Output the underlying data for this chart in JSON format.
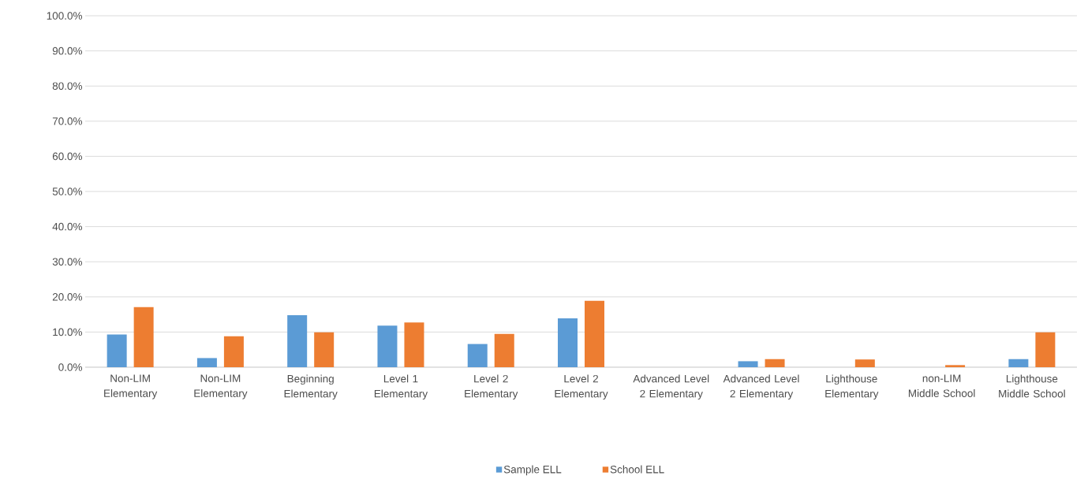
{
  "chart_data": {
    "type": "bar",
    "categories": [
      "Non-LIM Elementary",
      "Non-LIM Elementary",
      "Beginning Elementary",
      "Level 1 Elementary",
      "Level  2 Elementary",
      "Level 2 Elementary",
      "Advanced Level 2 Elementary",
      "Advanced Level 2 Elementary",
      "Lighthouse Elementary",
      "non-LIM Middle School",
      "Lighthouse Middle School"
    ],
    "series": [
      {
        "name": "Sample ELL",
        "color": "#5b9bd5",
        "values": [
          9.3,
          2.6,
          14.8,
          11.8,
          6.6,
          13.9,
          0,
          1.7,
          0,
          0,
          2.3
        ]
      },
      {
        "name": "School ELL",
        "color": "#ed7d31",
        "values": [
          17.1,
          8.8,
          9.9,
          12.7,
          9.5,
          18.9,
          0,
          2.3,
          2.2,
          0.6,
          9.9
        ]
      }
    ],
    "ylim": [
      0,
      100
    ],
    "yticks": [
      {
        "value": 0,
        "label": "0.0%"
      },
      {
        "value": 10,
        "label": "10.0%"
      },
      {
        "value": 20,
        "label": "20.0%"
      },
      {
        "value": 30,
        "label": "30.0%"
      },
      {
        "value": 40,
        "label": "40.0%"
      },
      {
        "value": 50,
        "label": "50.0%"
      },
      {
        "value": 60,
        "label": "60.0%"
      },
      {
        "value": 70,
        "label": "70.0%"
      },
      {
        "value": 80,
        "label": "80.0%"
      },
      {
        "value": 90,
        "label": "90.0%"
      },
      {
        "value": 100,
        "label": "100.0%"
      }
    ],
    "grid": "y",
    "legend": "bottom"
  }
}
